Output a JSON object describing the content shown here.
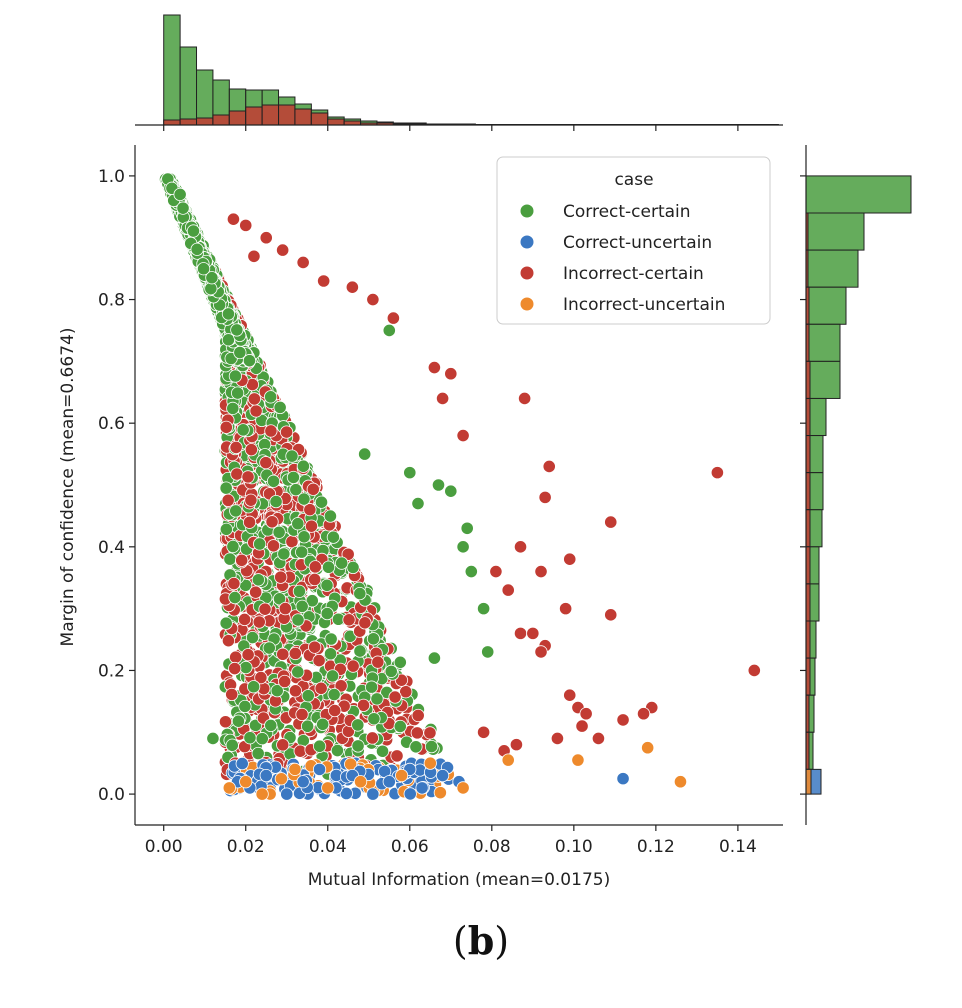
{
  "caption": {
    "open": "(",
    "letter": "b",
    "close": ")"
  },
  "colors": {
    "correct_certain": "#4a9e3f",
    "correct_uncertain": "#3b78c2",
    "incorrect_certain": "#c23b33",
    "incorrect_uncertain": "#ee8a2c"
  },
  "chart_data": {
    "type": "scatter",
    "title": "",
    "xlabel": "Mutual Information (mean=0.0175)",
    "ylabel": "Margin of confidence (mean=0.6674)",
    "xlim": [
      -0.007,
      0.151
    ],
    "ylim": [
      -0.05,
      1.05
    ],
    "xticks": [
      0.0,
      0.02,
      0.04,
      0.06,
      0.08,
      0.1,
      0.12,
      0.14
    ],
    "xtick_labels": [
      "0.00",
      "0.02",
      "0.04",
      "0.06",
      "0.08",
      "0.10",
      "0.12",
      "0.14"
    ],
    "yticks": [
      0.0,
      0.2,
      0.4,
      0.6,
      0.8,
      1.0
    ],
    "ytick_labels": [
      "0.0",
      "0.2",
      "0.4",
      "0.6",
      "0.8",
      "1.0"
    ],
    "legend": {
      "title": "case",
      "position": "top-right",
      "entries": [
        "Correct-certain",
        "Correct-uncertain",
        "Incorrect-certain",
        "Incorrect-uncertain"
      ]
    },
    "series": [
      {
        "name": "Correct-certain",
        "cluster": "dense band from (0.0, 1.0) down to (0.015-0.07, 0.03-0.9)",
        "points": [
          [
            0.001,
            0.995
          ],
          [
            0.002,
            0.98
          ],
          [
            0.004,
            0.97
          ],
          [
            0.012,
            0.09
          ],
          [
            0.067,
            0.5
          ],
          [
            0.07,
            0.49
          ],
          [
            0.074,
            0.43
          ],
          [
            0.078,
            0.3
          ],
          [
            0.079,
            0.23
          ],
          [
            0.075,
            0.36
          ],
          [
            0.073,
            0.4
          ],
          [
            0.062,
            0.47
          ],
          [
            0.055,
            0.75
          ],
          [
            0.06,
            0.52
          ],
          [
            0.049,
            0.55
          ],
          [
            0.066,
            0.22
          ]
        ]
      },
      {
        "name": "Correct-uncertain",
        "points": [
          [
            0.018,
            0.02
          ],
          [
            0.021,
            0.01
          ],
          [
            0.025,
            0.03
          ],
          [
            0.03,
            0.0
          ],
          [
            0.034,
            0.02
          ],
          [
            0.038,
            0.04
          ],
          [
            0.042,
            0.01
          ],
          [
            0.046,
            0.03
          ],
          [
            0.051,
            0.0
          ],
          [
            0.055,
            0.02
          ],
          [
            0.06,
            0.04
          ],
          [
            0.063,
            0.01
          ],
          [
            0.068,
            0.03
          ],
          [
            0.072,
            0.02
          ],
          [
            0.112,
            0.025
          ]
        ]
      },
      {
        "name": "Incorrect-certain",
        "cluster": "spread from x=0.012 to 0.07, y=0.03 to 0.93",
        "points": [
          [
            0.017,
            0.93
          ],
          [
            0.02,
            0.92
          ],
          [
            0.022,
            0.87
          ],
          [
            0.025,
            0.9
          ],
          [
            0.029,
            0.88
          ],
          [
            0.034,
            0.86
          ],
          [
            0.039,
            0.83
          ],
          [
            0.046,
            0.82
          ],
          [
            0.051,
            0.8
          ],
          [
            0.056,
            0.77
          ],
          [
            0.066,
            0.69
          ],
          [
            0.068,
            0.64
          ],
          [
            0.07,
            0.68
          ],
          [
            0.073,
            0.58
          ],
          [
            0.088,
            0.64
          ],
          [
            0.094,
            0.53
          ],
          [
            0.135,
            0.52
          ],
          [
            0.093,
            0.48
          ],
          [
            0.109,
            0.44
          ],
          [
            0.087,
            0.4
          ],
          [
            0.099,
            0.38
          ],
          [
            0.081,
            0.36
          ],
          [
            0.092,
            0.36
          ],
          [
            0.084,
            0.33
          ],
          [
            0.098,
            0.3
          ],
          [
            0.109,
            0.29
          ],
          [
            0.087,
            0.26
          ],
          [
            0.09,
            0.26
          ],
          [
            0.093,
            0.24
          ],
          [
            0.092,
            0.23
          ],
          [
            0.099,
            0.16
          ],
          [
            0.101,
            0.14
          ],
          [
            0.103,
            0.13
          ],
          [
            0.119,
            0.14
          ],
          [
            0.117,
            0.13
          ],
          [
            0.112,
            0.12
          ],
          [
            0.102,
            0.11
          ],
          [
            0.106,
            0.09
          ],
          [
            0.096,
            0.09
          ],
          [
            0.086,
            0.08
          ],
          [
            0.144,
            0.2
          ],
          [
            0.083,
            0.07
          ],
          [
            0.078,
            0.1
          ]
        ]
      },
      {
        "name": "Incorrect-uncertain",
        "points": [
          [
            0.016,
            0.01
          ],
          [
            0.02,
            0.02
          ],
          [
            0.024,
            0.0
          ],
          [
            0.032,
            0.04
          ],
          [
            0.04,
            0.01
          ],
          [
            0.048,
            0.02
          ],
          [
            0.058,
            0.03
          ],
          [
            0.065,
            0.05
          ],
          [
            0.073,
            0.01
          ],
          [
            0.084,
            0.055
          ],
          [
            0.101,
            0.055
          ],
          [
            0.118,
            0.075
          ],
          [
            0.126,
            0.02
          ]
        ]
      }
    ],
    "top_histogram": {
      "bins_x": [
        0.0,
        0.004,
        0.008,
        0.012,
        0.016,
        0.02,
        0.024,
        0.028,
        0.032,
        0.036,
        0.04,
        0.044,
        0.048,
        0.052,
        0.056,
        0.06,
        0.064,
        0.068,
        0.072
      ],
      "total_counts": [
        110,
        78,
        55,
        45,
        36,
        35,
        35,
        28,
        21,
        15,
        8,
        6,
        4,
        3,
        2,
        2,
        1,
        1,
        1
      ],
      "incorrect_counts": [
        5,
        6,
        7,
        10,
        14,
        18,
        20,
        20,
        16,
        12,
        6,
        4,
        2,
        2,
        1,
        1,
        1,
        0,
        0
      ]
    },
    "right_histogram": {
      "bins_y": [
        0.94,
        0.88,
        0.82,
        0.76,
        0.7,
        0.64,
        0.58,
        0.52,
        0.46,
        0.4,
        0.34,
        0.28,
        0.22,
        0.16,
        0.1,
        0.04
      ],
      "total_counts": [
        105,
        58,
        52,
        40,
        34,
        34,
        20,
        17,
        17,
        16,
        13,
        13,
        10,
        9,
        8,
        7
      ],
      "incorrect_counts": [
        0,
        2,
        2,
        3,
        3,
        4,
        4,
        4,
        4,
        4,
        4,
        4,
        4,
        4,
        3,
        3
      ],
      "bottom_bar": {
        "uncertain_count": 15,
        "incorrect_uncertain_count": 5
      }
    }
  }
}
